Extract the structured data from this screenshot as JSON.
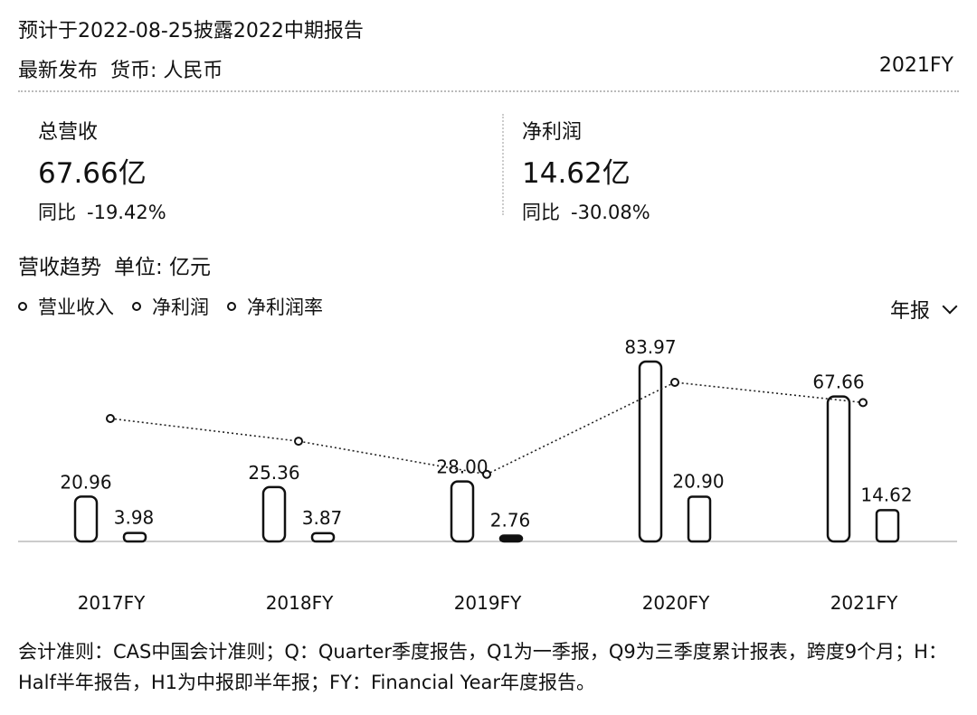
{
  "header": {
    "notice": "预计于2022-08-25披露2022中期报告",
    "latest_label": "最新发布",
    "currency": "货币: 人民币",
    "period": "2021FY"
  },
  "cards": [
    {
      "label": "总营收",
      "value": "67.66亿",
      "yoy_label": "同比",
      "yoy_value": "-19.42%"
    },
    {
      "label": "净利润",
      "value": "14.62亿",
      "yoy_label": "同比",
      "yoy_value": "-30.08%"
    }
  ],
  "trend": {
    "title": "营收趋势",
    "unit": "单位: 亿元"
  },
  "legend": [
    "营业收入",
    "净利润",
    "净利润率"
  ],
  "period_select": {
    "value": "年报",
    "icon": "chevron-down-icon"
  },
  "chart_data": {
    "type": "bar",
    "categories": [
      "2017FY",
      "2018FY",
      "2019FY",
      "2020FY",
      "2021FY"
    ],
    "series": [
      {
        "name": "营业收入",
        "values": [
          20.96,
          25.36,
          28.0,
          83.97,
          67.66
        ]
      },
      {
        "name": "净利润",
        "values": [
          3.98,
          3.87,
          2.76,
          20.9,
          14.62
        ]
      },
      {
        "name": "净利润率",
        "type": "line",
        "values": [
          19.0,
          15.3,
          9.9,
          24.9,
          21.6
        ]
      }
    ],
    "highlight": {
      "series": "净利润",
      "category": "2019FY"
    },
    "ylim": [
      0,
      90
    ],
    "grid": false,
    "legend_position": "top-left"
  },
  "footnote": "会计准则：CAS中国会计准则；Q：Quarter季度报告，Q1为一季报，Q9为三季度累计报表，跨度9个月；H：Half半年报告，H1为中报即半年报；FY：Financial Year年度报告。"
}
